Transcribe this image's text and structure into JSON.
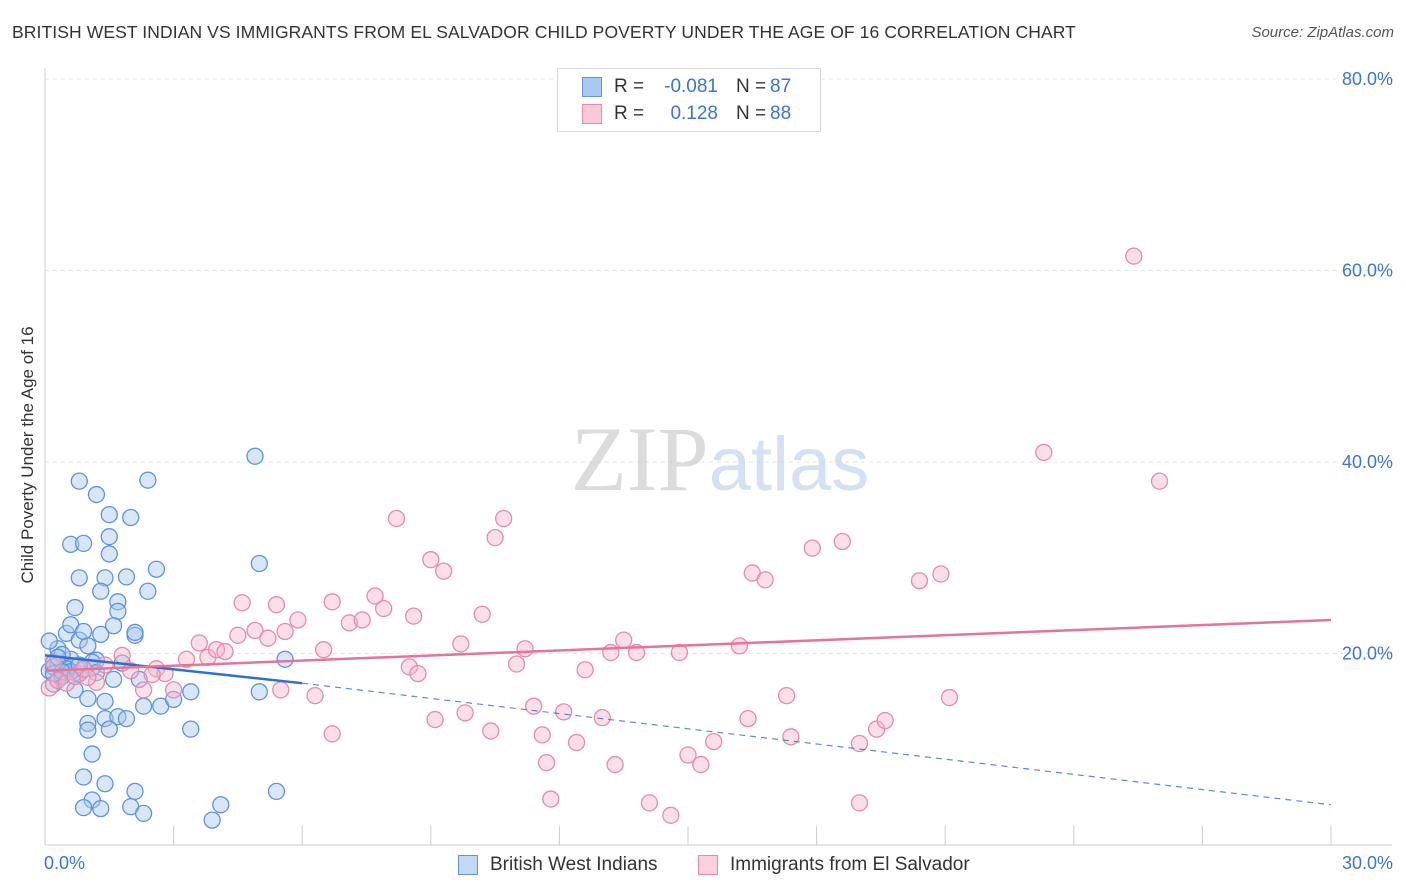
{
  "title": "BRITISH WEST INDIAN VS IMMIGRANTS FROM EL SALVADOR CHILD POVERTY UNDER THE AGE OF 16 CORRELATION CHART",
  "source": "Source: ZipAtlas.com",
  "watermark": "ZIPatlas",
  "legend_top": [
    {
      "r_label": "R =",
      "r_value": "-0.081",
      "n_label": "N =",
      "n_value": "87"
    },
    {
      "r_label": "R =",
      "r_value": "0.128",
      "n_label": "N =",
      "n_value": "88"
    }
  ],
  "colors": {
    "blue_fill": "#a9c8f0",
    "blue_stroke": "#5d93df",
    "blue_line": "#2f6fd0",
    "pink_fill": "#f5b8cb",
    "pink_stroke": "#e88aa8",
    "pink_line": "#e8729a",
    "tick_text": "#3a74d8",
    "grid": "#e3e3e3"
  },
  "chart_data": {
    "type": "scatter",
    "title": "BRITISH WEST INDIAN VS IMMIGRANTS FROM EL SALVADOR CHILD POVERTY UNDER THE AGE OF 16 CORRELATION CHART",
    "xlabel": "",
    "ylabel": "Child Poverty Under the Age of 16",
    "xlim": [
      0,
      30
    ],
    "ylim": [
      0,
      80
    ],
    "x_ticks": [
      {
        "value": 0,
        "label": "0.0%"
      },
      {
        "value": 30,
        "label": "30.0%"
      }
    ],
    "y_ticks": [
      {
        "value": 20,
        "label": "20.0%"
      },
      {
        "value": 40,
        "label": "40.0%"
      },
      {
        "value": 60,
        "label": "60.0%"
      },
      {
        "value": 80,
        "label": "80.0%"
      }
    ],
    "grid": true,
    "legend_position": "top-center",
    "series": [
      {
        "name": "British West Indians",
        "r": -0.081,
        "n": 87,
        "trend": {
          "x": [
            0,
            6
          ],
          "y": [
            19.8,
            16.9
          ],
          "dashed_to": [
            30,
            4.2
          ]
        },
        "points": [
          [
            0.1,
            18.2
          ],
          [
            0.2,
            19.1
          ],
          [
            0.3,
            20.5
          ],
          [
            0.1,
            21.3
          ],
          [
            0.4,
            17.8
          ],
          [
            0.5,
            18.6
          ],
          [
            0.6,
            19.4
          ],
          [
            0.3,
            17.2
          ],
          [
            0.7,
            18.0
          ],
          [
            0.2,
            16.8
          ],
          [
            0.5,
            22.1
          ],
          [
            0.8,
            21.4
          ],
          [
            0.6,
            23.0
          ],
          [
            0.7,
            24.8
          ],
          [
            0.9,
            22.3
          ],
          [
            1.0,
            20.8
          ],
          [
            0.4,
            19.9
          ],
          [
            0.8,
            17.9
          ],
          [
            1.1,
            18.5
          ],
          [
            1.2,
            19.3
          ],
          [
            0.6,
            31.4
          ],
          [
            0.8,
            27.9
          ],
          [
            0.9,
            31.5
          ],
          [
            0.8,
            38.0
          ],
          [
            1.2,
            36.6
          ],
          [
            1.5,
            34.5
          ],
          [
            2.0,
            34.2
          ],
          [
            1.5,
            32.2
          ],
          [
            1.5,
            30.4
          ],
          [
            1.9,
            28.0
          ],
          [
            1.4,
            27.9
          ],
          [
            1.3,
            26.5
          ],
          [
            1.7,
            25.4
          ],
          [
            2.4,
            26.5
          ],
          [
            2.6,
            28.8
          ],
          [
            2.4,
            38.1
          ],
          [
            1.7,
            24.4
          ],
          [
            1.6,
            22.9
          ],
          [
            2.1,
            21.9
          ],
          [
            1.3,
            22.0
          ],
          [
            0.3,
            18.9
          ],
          [
            0.5,
            18.0
          ],
          [
            0.7,
            16.2
          ],
          [
            1.0,
            15.3
          ],
          [
            1.4,
            15.0
          ],
          [
            1.6,
            17.3
          ],
          [
            1.4,
            13.2
          ],
          [
            1.7,
            13.4
          ],
          [
            1.9,
            13.2
          ],
          [
            1.5,
            12.1
          ],
          [
            2.3,
            14.5
          ],
          [
            2.2,
            17.3
          ],
          [
            2.7,
            14.5
          ],
          [
            3.0,
            15.2
          ],
          [
            3.4,
            16.0
          ],
          [
            3.4,
            12.1
          ],
          [
            1.0,
            12.7
          ],
          [
            1.1,
            9.5
          ],
          [
            1.0,
            12.0
          ],
          [
            0.9,
            7.1
          ],
          [
            1.4,
            6.4
          ],
          [
            2.1,
            5.6
          ],
          [
            1.1,
            4.7
          ],
          [
            0.9,
            3.9
          ],
          [
            1.3,
            3.8
          ],
          [
            2.0,
            4.0
          ],
          [
            2.3,
            3.3
          ],
          [
            4.1,
            4.2
          ],
          [
            3.9,
            2.6
          ],
          [
            5.4,
            5.6
          ],
          [
            5.0,
            16.0
          ],
          [
            5.6,
            19.4
          ],
          [
            5.0,
            29.4
          ],
          [
            4.9,
            40.6
          ],
          [
            0.2,
            18.6
          ],
          [
            0.4,
            17.6
          ],
          [
            0.5,
            18.4
          ],
          [
            0.3,
            19.6
          ],
          [
            1.8,
            19.0
          ],
          [
            2.1,
            22.2
          ],
          [
            0.9,
            18.3
          ],
          [
            1.1,
            19.1
          ],
          [
            0.6,
            18.1
          ],
          [
            0.2,
            17.9
          ],
          [
            1.2,
            18.0
          ],
          [
            0.8,
            18.8
          ],
          [
            0.4,
            18.1
          ]
        ]
      },
      {
        "name": "Immigrants from El Salvador",
        "r": 0.128,
        "n": 88,
        "trend": {
          "x": [
            0,
            30
          ],
          "y": [
            18.2,
            23.5
          ]
        },
        "points": [
          [
            0.1,
            16.4
          ],
          [
            0.3,
            17.2
          ],
          [
            0.5,
            16.9
          ],
          [
            0.7,
            17.6
          ],
          [
            0.9,
            18.4
          ],
          [
            1.2,
            17.0
          ],
          [
            1.4,
            18.8
          ],
          [
            1.8,
            19.8
          ],
          [
            2.0,
            18.2
          ],
          [
            2.3,
            16.2
          ],
          [
            2.6,
            18.4
          ],
          [
            2.8,
            17.9
          ],
          [
            3.0,
            16.2
          ],
          [
            3.3,
            19.4
          ],
          [
            3.6,
            21.1
          ],
          [
            3.8,
            19.6
          ],
          [
            4.0,
            20.4
          ],
          [
            4.2,
            20.2
          ],
          [
            4.5,
            21.9
          ],
          [
            4.6,
            25.3
          ],
          [
            4.9,
            22.4
          ],
          [
            5.2,
            21.6
          ],
          [
            5.4,
            25.1
          ],
          [
            5.5,
            16.2
          ],
          [
            5.6,
            22.3
          ],
          [
            5.9,
            23.5
          ],
          [
            6.3,
            15.6
          ],
          [
            6.5,
            20.4
          ],
          [
            6.7,
            25.4
          ],
          [
            6.7,
            11.6
          ],
          [
            7.1,
            23.2
          ],
          [
            7.4,
            23.5
          ],
          [
            7.7,
            26.0
          ],
          [
            7.9,
            24.7
          ],
          [
            8.2,
            34.1
          ],
          [
            8.5,
            18.6
          ],
          [
            8.7,
            17.9
          ],
          [
            8.6,
            23.9
          ],
          [
            9.0,
            29.8
          ],
          [
            9.3,
            28.6
          ],
          [
            9.1,
            13.1
          ],
          [
            9.7,
            21.0
          ],
          [
            9.8,
            13.8
          ],
          [
            10.2,
            24.1
          ],
          [
            10.4,
            11.9
          ],
          [
            10.5,
            32.1
          ],
          [
            10.7,
            34.1
          ],
          [
            11.0,
            18.9
          ],
          [
            11.2,
            20.5
          ],
          [
            11.4,
            14.5
          ],
          [
            11.6,
            11.5
          ],
          [
            11.7,
            8.6
          ],
          [
            11.8,
            4.8
          ],
          [
            12.1,
            13.9
          ],
          [
            12.4,
            10.7
          ],
          [
            12.6,
            18.3
          ],
          [
            13.0,
            13.3
          ],
          [
            13.3,
            8.4
          ],
          [
            13.5,
            21.4
          ],
          [
            13.2,
            20.1
          ],
          [
            13.8,
            20.1
          ],
          [
            14.1,
            4.4
          ],
          [
            14.6,
            3.1
          ],
          [
            14.8,
            20.1
          ],
          [
            15.0,
            9.4
          ],
          [
            15.3,
            8.4
          ],
          [
            15.6,
            10.8
          ],
          [
            16.2,
            20.8
          ],
          [
            16.4,
            13.2
          ],
          [
            16.5,
            28.4
          ],
          [
            16.8,
            27.7
          ],
          [
            17.3,
            15.6
          ],
          [
            17.4,
            11.3
          ],
          [
            17.9,
            31.0
          ],
          [
            18.6,
            31.7
          ],
          [
            19.0,
            10.6
          ],
          [
            19.0,
            4.4
          ],
          [
            19.4,
            12.1
          ],
          [
            19.6,
            13.0
          ],
          [
            20.4,
            27.6
          ],
          [
            20.9,
            28.3
          ],
          [
            21.1,
            15.4
          ],
          [
            23.3,
            41.0
          ],
          [
            25.4,
            61.5
          ],
          [
            26.0,
            38.0
          ],
          [
            0.2,
            19.0
          ],
          [
            1.0,
            17.5
          ],
          [
            2.5,
            17.8
          ]
        ]
      }
    ]
  }
}
